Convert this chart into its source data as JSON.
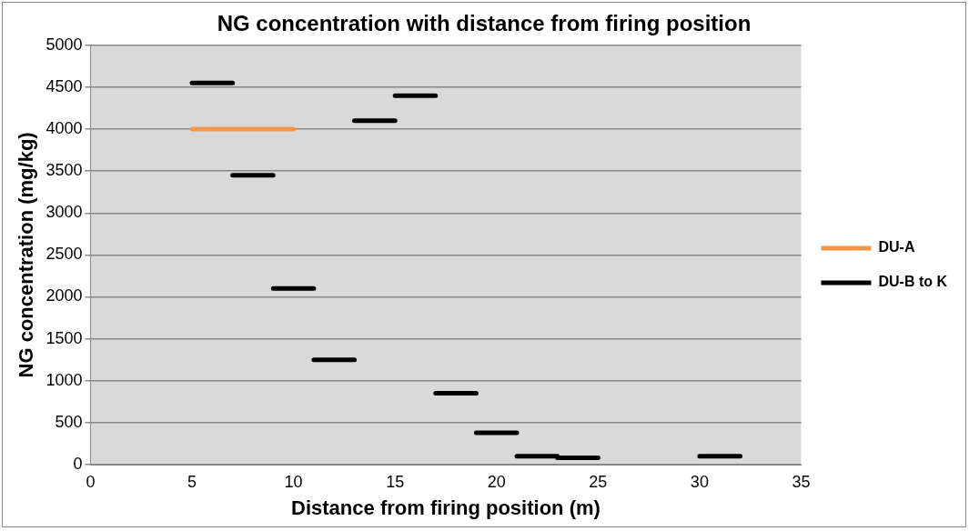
{
  "chart_data": {
    "type": "line",
    "title": "NG concentration with distance from firing position",
    "xlabel": "Distance from firing position (m)",
    "ylabel": "NG concentration (mg/kg)",
    "xlim": [
      0,
      35
    ],
    "xticks": [
      0,
      5,
      10,
      15,
      20,
      25,
      30,
      35
    ],
    "ylim": [
      0,
      5000
    ],
    "yticks": [
      0,
      500,
      1000,
      1500,
      2000,
      2500,
      3000,
      3500,
      4000,
      4500,
      5000
    ],
    "grid": "y",
    "legend": "right",
    "marker": "none",
    "line_style": "solid",
    "series": [
      {
        "name": "DU-A",
        "color": "#f79646",
        "x": [
          5,
          10
        ],
        "values": [
          4000,
          4000
        ]
      },
      {
        "name": "DU-B to K",
        "color": "#000000",
        "x": [
          5,
          7,
          null,
          7,
          9,
          null,
          9,
          11,
          null,
          11,
          13,
          null,
          13,
          15,
          null,
          15,
          17,
          null,
          17,
          19,
          null,
          19,
          21,
          null,
          21,
          23,
          null,
          23,
          25,
          null,
          30,
          32
        ],
        "values": [
          4550,
          4550,
          null,
          3450,
          3450,
          null,
          2100,
          2100,
          null,
          1250,
          1250,
          null,
          4100,
          4100,
          null,
          4400,
          4400,
          null,
          850,
          850,
          null,
          380,
          380,
          null,
          100,
          100,
          null,
          80,
          80,
          null,
          100,
          100
        ]
      }
    ]
  }
}
